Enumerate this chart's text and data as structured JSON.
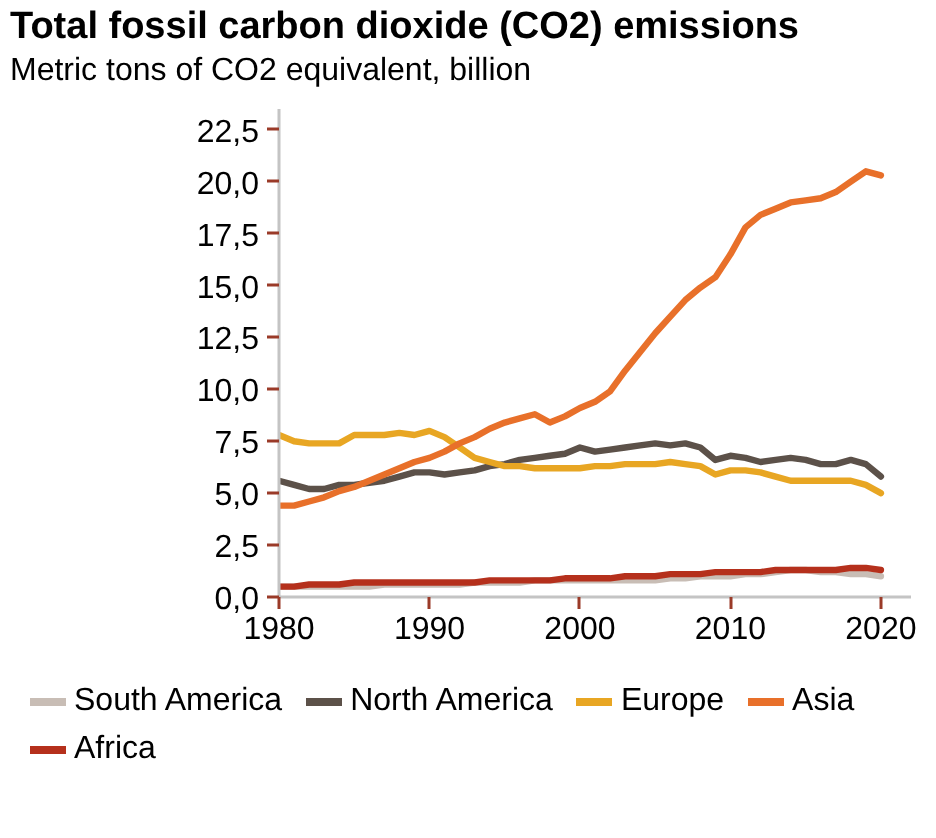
{
  "chart_data": {
    "type": "line",
    "title": "Total fossil carbon dioxide (CO2) emissions",
    "subtitle": "Metric tons of CO2 equivalent, billion",
    "x": [
      1980,
      1981,
      1982,
      1983,
      1984,
      1985,
      1986,
      1987,
      1988,
      1989,
      1990,
      1991,
      1992,
      1993,
      1994,
      1995,
      1996,
      1997,
      1998,
      1999,
      2000,
      2001,
      2002,
      2003,
      2004,
      2005,
      2006,
      2007,
      2008,
      2009,
      2010,
      2011,
      2012,
      2013,
      2014,
      2015,
      2016,
      2017,
      2018,
      2019,
      2020
    ],
    "series": [
      {
        "name": "South America",
        "color": "#c8bdb5",
        "values": [
          0.5,
          0.5,
          0.5,
          0.5,
          0.5,
          0.5,
          0.5,
          0.6,
          0.6,
          0.6,
          0.6,
          0.6,
          0.6,
          0.7,
          0.7,
          0.7,
          0.7,
          0.8,
          0.8,
          0.8,
          0.8,
          0.8,
          0.8,
          0.8,
          0.8,
          0.8,
          0.9,
          0.9,
          1.0,
          1.0,
          1.0,
          1.1,
          1.1,
          1.2,
          1.3,
          1.3,
          1.2,
          1.2,
          1.1,
          1.1,
          1.0
        ]
      },
      {
        "name": "North America",
        "color": "#5c5149",
        "values": [
          5.6,
          5.4,
          5.2,
          5.2,
          5.4,
          5.4,
          5.5,
          5.6,
          5.8,
          6.0,
          6.0,
          5.9,
          6.0,
          6.1,
          6.3,
          6.4,
          6.6,
          6.7,
          6.8,
          6.9,
          7.2,
          7.0,
          7.1,
          7.2,
          7.3,
          7.4,
          7.3,
          7.4,
          7.2,
          6.6,
          6.8,
          6.7,
          6.5,
          6.6,
          6.7,
          6.6,
          6.4,
          6.4,
          6.6,
          6.4,
          5.8
        ]
      },
      {
        "name": "Europe",
        "color": "#e8a623",
        "values": [
          7.8,
          7.5,
          7.4,
          7.4,
          7.4,
          7.8,
          7.8,
          7.8,
          7.9,
          7.8,
          8.0,
          7.7,
          7.2,
          6.7,
          6.5,
          6.3,
          6.3,
          6.2,
          6.2,
          6.2,
          6.2,
          6.3,
          6.3,
          6.4,
          6.4,
          6.4,
          6.5,
          6.4,
          6.3,
          5.9,
          6.1,
          6.1,
          6.0,
          5.8,
          5.6,
          5.6,
          5.6,
          5.6,
          5.6,
          5.4,
          5.0
        ]
      },
      {
        "name": "Asia",
        "color": "#e8702a",
        "values": [
          4.4,
          4.4,
          4.6,
          4.8,
          5.1,
          5.3,
          5.6,
          5.9,
          6.2,
          6.5,
          6.7,
          7.0,
          7.4,
          7.7,
          8.1,
          8.4,
          8.6,
          8.8,
          8.4,
          8.7,
          9.1,
          9.4,
          9.9,
          10.9,
          11.8,
          12.7,
          13.5,
          14.3,
          14.9,
          15.4,
          16.5,
          17.8,
          18.4,
          18.7,
          19.0,
          19.1,
          19.2,
          19.5,
          20.0,
          20.5,
          20.3
        ]
      },
      {
        "name": "Africa",
        "color": "#b5301c",
        "values": [
          0.5,
          0.5,
          0.6,
          0.6,
          0.6,
          0.7,
          0.7,
          0.7,
          0.7,
          0.7,
          0.7,
          0.7,
          0.7,
          0.7,
          0.8,
          0.8,
          0.8,
          0.8,
          0.8,
          0.9,
          0.9,
          0.9,
          0.9,
          1.0,
          1.0,
          1.0,
          1.1,
          1.1,
          1.1,
          1.2,
          1.2,
          1.2,
          1.2,
          1.3,
          1.3,
          1.3,
          1.3,
          1.3,
          1.4,
          1.4,
          1.3
        ]
      }
    ],
    "xlim": [
      1980,
      2022
    ],
    "xticks": [
      1980,
      1990,
      2000,
      2010,
      2020
    ],
    "ylim": [
      0,
      23.5
    ],
    "yticks": [
      {
        "value": 0,
        "label": "0,0"
      },
      {
        "value": 2.5,
        "label": "2,5"
      },
      {
        "value": 5,
        "label": "5,0"
      },
      {
        "value": 7.5,
        "label": "7,5"
      },
      {
        "value": 10,
        "label": "10,0"
      },
      {
        "value": 12.5,
        "label": "12,5"
      },
      {
        "value": 15,
        "label": "15,0"
      },
      {
        "value": 17.5,
        "label": "17,5"
      },
      {
        "value": 20,
        "label": "20,0"
      },
      {
        "value": 22.5,
        "label": "22,5"
      }
    ],
    "legend": "bottom"
  }
}
